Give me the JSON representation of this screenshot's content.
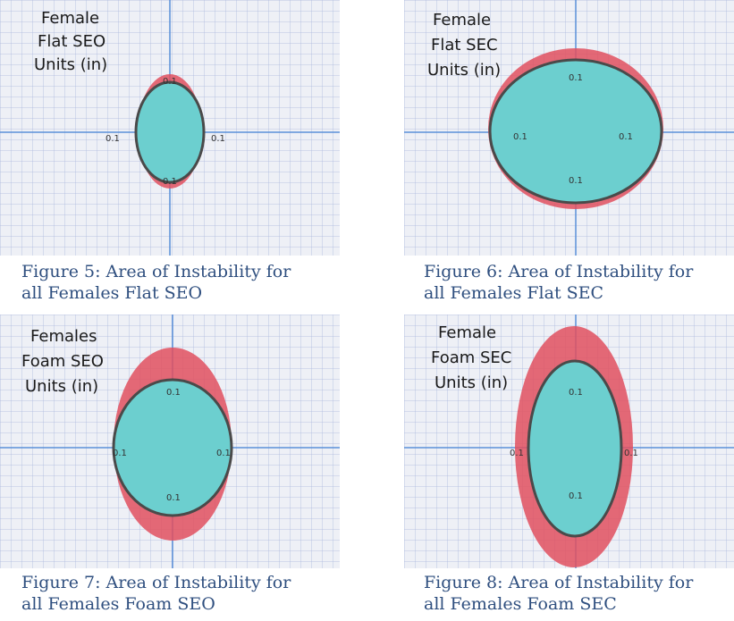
{
  "panels": [
    {
      "title_lines": [
        "Female",
        "Flat SEO",
        "Units (in)"
      ],
      "tick_labels": {
        "top": "0.1",
        "bottom": "0.1",
        "left": "0.1",
        "right": "0.1"
      },
      "caption_lines": [
        "Figure 5: Area of Instability for",
        "all Females Flat SEO"
      ]
    },
    {
      "title_lines": [
        "Female",
        "Flat SEC",
        "Units (in)"
      ],
      "tick_labels": {
        "top": "0.1",
        "bottom": "0.1",
        "left": "0.1",
        "right": "0.1"
      },
      "caption_lines": [
        "Figure 6: Area of Instability for",
        "all Females Flat SEC"
      ]
    },
    {
      "title_lines": [
        "Females",
        "Foam SEO",
        "Units (in)"
      ],
      "tick_labels": {
        "top": "0.1",
        "bottom": "0.1",
        "left": "0.1",
        "right": "0.1"
      },
      "caption_lines": [
        "Figure 7: Area of Instability for",
        "all Females Foam SEO"
      ]
    },
    {
      "title_lines": [
        "Female",
        "Foam SEC",
        "Units (in)"
      ],
      "tick_labels": {
        "top": "0.1",
        "bottom": "0.1",
        "left": "0.1",
        "right": "0.1"
      },
      "caption_lines": [
        "Figure 8: Area of Instability for",
        "all Females Foam SEC"
      ]
    }
  ],
  "colors": {
    "grid_background": "#eef0f6",
    "grid_line": "#aab8dc",
    "axis_line": "#5a8fd8",
    "outer_ellipse": "#e0505f",
    "inner_ellipse": "#6ccfcf",
    "inner_ellipse_stroke": "#4a4a4a",
    "caption_text": "#2f4f7f"
  }
}
